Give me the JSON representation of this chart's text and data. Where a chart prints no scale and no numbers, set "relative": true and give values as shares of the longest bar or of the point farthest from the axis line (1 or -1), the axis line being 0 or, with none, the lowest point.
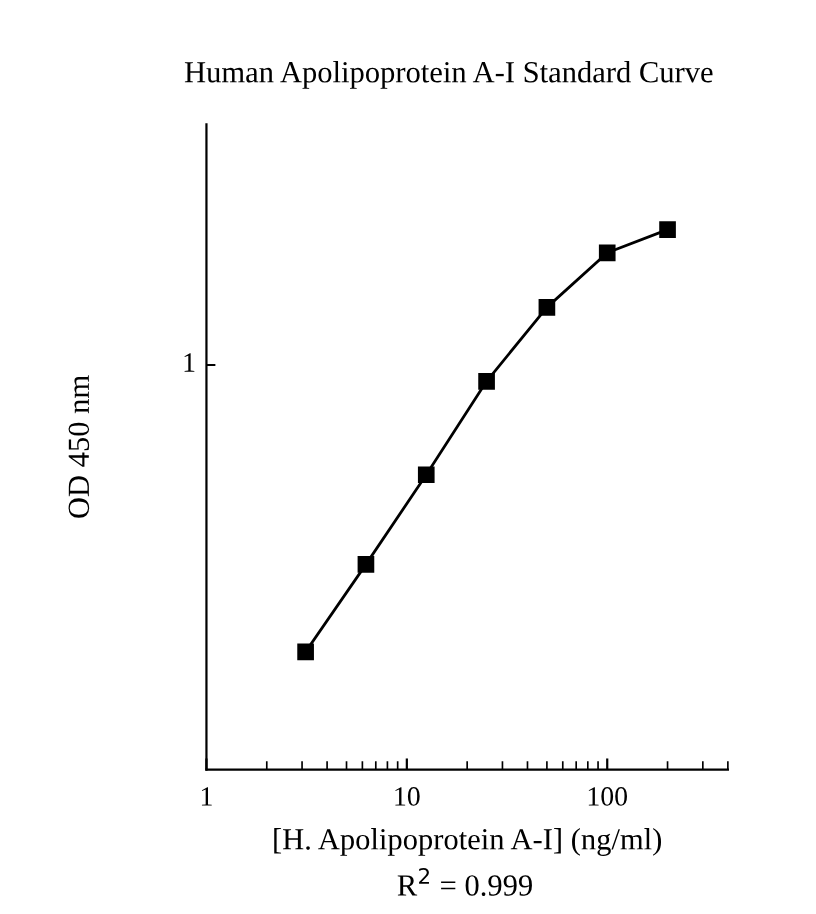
{
  "chart_data": {
    "type": "line",
    "title": "Human Apolipoprotein A-I Standard Curve",
    "xlabel": "[H. Apolipoprotein A-I] (ng/ml)",
    "ylabel": "OD 450 nm",
    "x": [
      3.125,
      6.25,
      12.5,
      25,
      50,
      100,
      200
    ],
    "series": [
      {
        "color": "#000000",
        "values": [
          0.218,
          0.38,
          0.546,
          0.719,
          0.856,
          0.957,
          1
        ]
      }
    ],
    "relative": true,
    "log": "x",
    "marker": "square",
    "line_style": "solid",
    "grid": false,
    "legend": false,
    "xlim": [
      1,
      400
    ],
    "xticks": [
      1,
      10,
      100
    ],
    "annotations": [
      "R$^{2}$ = 0.999",
      "1"
    ]
  }
}
